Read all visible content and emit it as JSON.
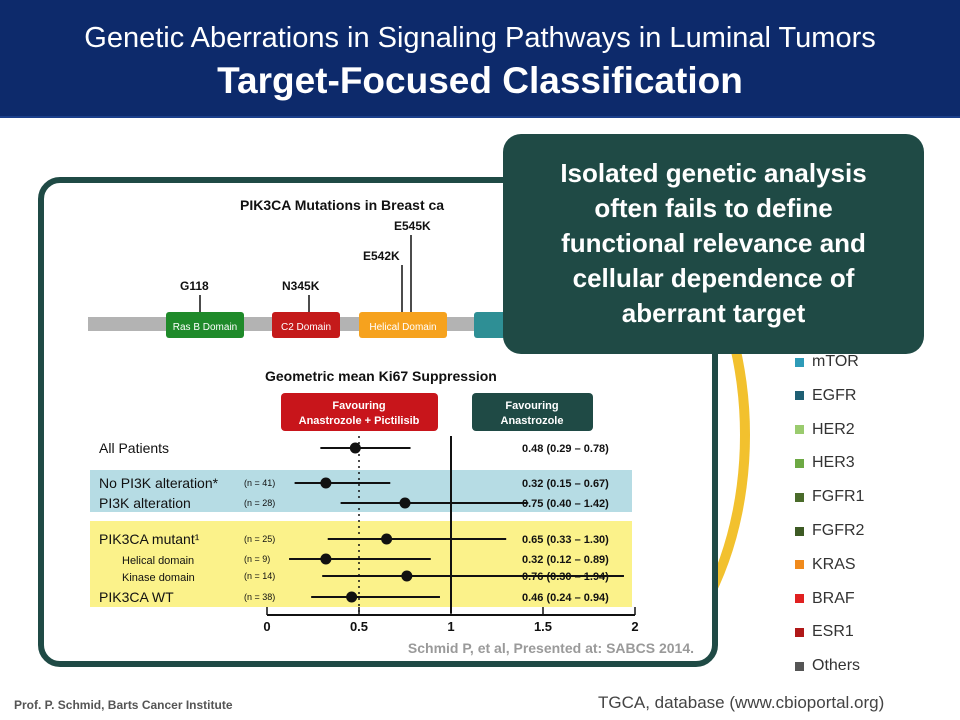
{
  "header": {
    "line1": "Genetic Aberrations in Signaling Pathways in Luminal Tumors",
    "line2": "Target-Focused Classification"
  },
  "callout": {
    "lines": [
      "Isolated genetic analysis",
      "often fails to define",
      "functional relevance and",
      "cellular dependence of",
      "aberrant target"
    ]
  },
  "legend": [
    {
      "label": "mTOR",
      "color": "#2e9bb8"
    },
    {
      "label": "EGFR",
      "color": "#1f5f73"
    },
    {
      "label": "HER2",
      "color": "#9acb6e"
    },
    {
      "label": "HER3",
      "color": "#6da944"
    },
    {
      "label": "FGFR1",
      "color": "#4a6b2a"
    },
    {
      "label": "FGFR2",
      "color": "#3d5a24"
    },
    {
      "label": "KRAS",
      "color": "#f08a1c"
    },
    {
      "label": "BRAF",
      "color": "#e02020"
    },
    {
      "label": "ESR1",
      "color": "#b01818"
    },
    {
      "label": "Others",
      "color": "#555555"
    }
  ],
  "protein": {
    "title": "PIK3CA Mutations in Breast ca",
    "mutations": [
      "G118",
      "N345K",
      "E542K",
      "E545K"
    ],
    "domains": [
      {
        "label": "Ras B Domain",
        "color": "#1f8a2a"
      },
      {
        "label": "C2 Domain",
        "color": "#c41a1a"
      },
      {
        "label": "Helical Domain",
        "color": "#f6a21e"
      },
      {
        "label": "",
        "color": "#2e8f95"
      }
    ]
  },
  "forest": {
    "title": "Geometric mean Ki67 Suppression",
    "favour_left": [
      "Favouring",
      "Anastrozole + Pictilisib"
    ],
    "favour_right": [
      "Favouring",
      "Anastrozole"
    ]
  },
  "chart_data": {
    "type": "forest",
    "title": "Geometric mean Ki67 Suppression",
    "xlim": [
      0,
      2
    ],
    "x_ticks": [
      "0",
      "0.5",
      "1",
      "1.5",
      "2"
    ],
    "reference_line": 1,
    "rows": [
      {
        "label": "All Patients",
        "n": "",
        "estimate": 0.48,
        "lower": 0.29,
        "upper": 0.78,
        "ci_text": "0.48 (0.29 – 0.78)",
        "indent": false,
        "group": "none"
      },
      {
        "label": "No PI3K alteration*",
        "n": "(n = 41)",
        "estimate": 0.32,
        "lower": 0.15,
        "upper": 0.67,
        "ci_text": "0.32 (0.15 – 0.67)",
        "indent": false,
        "group": "blue"
      },
      {
        "label": "PI3K alteration",
        "n": "(n = 28)",
        "estimate": 0.75,
        "lower": 0.4,
        "upper": 1.42,
        "ci_text": "0.75 (0.40 – 1.42)",
        "indent": false,
        "group": "blue"
      },
      {
        "label": "PIK3CA mutant¹",
        "n": "(n = 25)",
        "estimate": 0.65,
        "lower": 0.33,
        "upper": 1.3,
        "ci_text": "0.65 (0.33 – 1.30)",
        "indent": false,
        "group": "yellow"
      },
      {
        "label": "Helical domain",
        "n": "(n = 9)",
        "estimate": 0.32,
        "lower": 0.12,
        "upper": 0.89,
        "ci_text": "0.32 (0.12 – 0.89)",
        "indent": true,
        "group": "yellow"
      },
      {
        "label": "Kinase domain",
        "n": "(n = 14)",
        "estimate": 0.76,
        "lower": 0.3,
        "upper": 1.94,
        "ci_text": "0.76 (0.30 – 1.94)",
        "indent": true,
        "group": "yellow"
      },
      {
        "label": "PIK3CA WT",
        "n": "(n = 38)",
        "estimate": 0.46,
        "lower": 0.24,
        "upper": 0.94,
        "ci_text": "0.46 (0.24 – 0.94)",
        "indent": false,
        "group": "yellow"
      }
    ]
  },
  "citation": "Schmid P, et al, Presented at: SABCS 2014.",
  "footer": {
    "left": "Prof. P. Schmid, Barts Cancer Institute",
    "right": "TGCA, database (www.cbioportal.org)"
  }
}
